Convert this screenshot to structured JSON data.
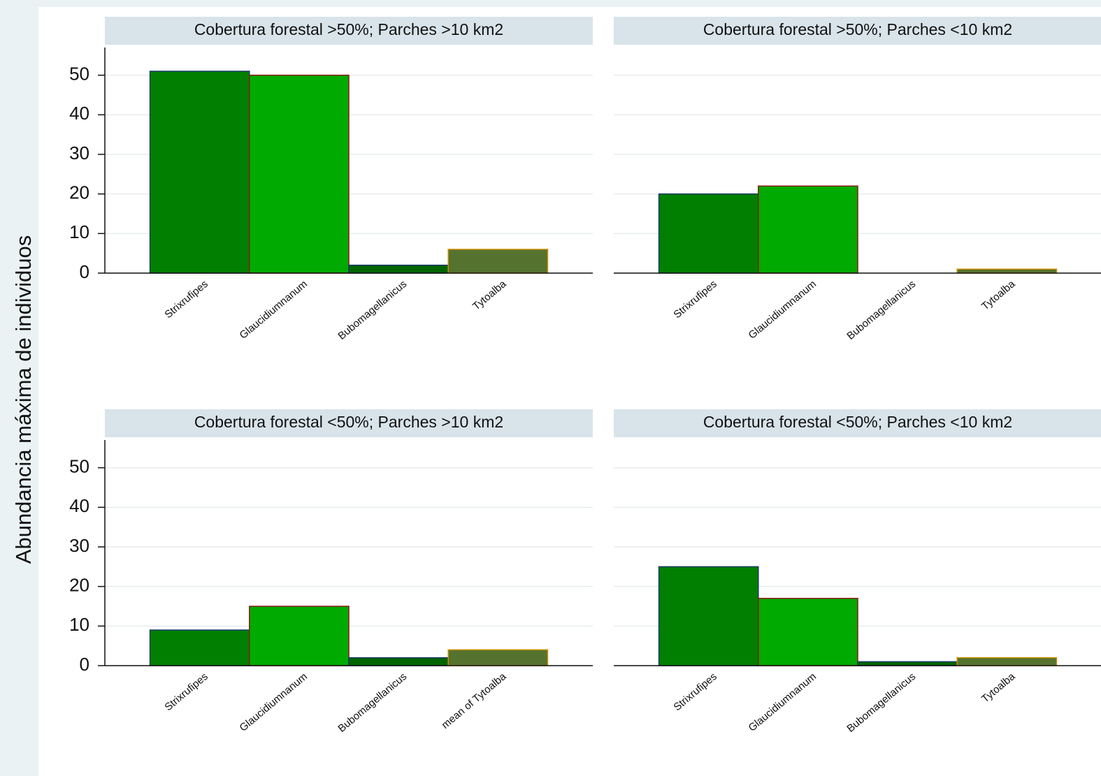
{
  "ylabel": "Abundancia máxima de individuos",
  "chart_data": [
    {
      "type": "bar",
      "title": "Cobertura forestal >50%; Parches >10 km2",
      "categories": [
        "Strixrufipes",
        "Glaucidiumnanum",
        "Bubomagellanicus",
        "Tytoalba"
      ],
      "values": [
        51,
        50,
        2,
        6
      ],
      "colors": [
        "#007f00",
        "#00aa00",
        "#006400",
        "#55732f"
      ],
      "edgecolors": [
        "#1a3a6a",
        "#8b1a1a",
        "#1a3a6a",
        "#d08a00"
      ],
      "ylim": [
        0,
        57
      ],
      "yticks": [
        0,
        10,
        20,
        30,
        40,
        50
      ],
      "ytick_labels": true,
      "grid": true
    },
    {
      "type": "bar",
      "title": "Cobertura forestal >50%; Parches <10 km2",
      "categories": [
        "Strixrufipes",
        "Glaucidiumnanum",
        "Bubomagellanicus",
        "Tytoalba"
      ],
      "values": [
        20,
        22,
        0,
        1
      ],
      "colors": [
        "#007f00",
        "#00aa00",
        "#006400",
        "#55732f"
      ],
      "edgecolors": [
        "#1a3a6a",
        "#8b1a1a",
        "#1a3a6a",
        "#d08a00"
      ],
      "ylim": [
        0,
        57
      ],
      "yticks": [
        0,
        10,
        20,
        30,
        40,
        50
      ],
      "ytick_labels": false,
      "grid": true
    },
    {
      "type": "bar",
      "title": "Cobertura forestal <50%; Parches >10 km2",
      "categories": [
        "Strixrufipes",
        "Glaucidiumnanum",
        "Bubomagellanicus",
        "mean of Tytoalba"
      ],
      "values": [
        9,
        15,
        2,
        4
      ],
      "colors": [
        "#007f00",
        "#00aa00",
        "#006400",
        "#55732f"
      ],
      "edgecolors": [
        "#1a3a6a",
        "#8b1a1a",
        "#1a3a6a",
        "#d08a00"
      ],
      "ylim": [
        0,
        57
      ],
      "yticks": [
        0,
        10,
        20,
        30,
        40,
        50
      ],
      "ytick_labels": true,
      "grid": true
    },
    {
      "type": "bar",
      "title": "Cobertura forestal <50%; Parches <10 km2",
      "categories": [
        "Strixrufipes",
        "Glaucidiumnanum",
        "Bubomagellanicus",
        "Tytoalba"
      ],
      "values": [
        25,
        17,
        1,
        2
      ],
      "colors": [
        "#007f00",
        "#00aa00",
        "#006400",
        "#55732f"
      ],
      "edgecolors": [
        "#1a3a6a",
        "#8b1a1a",
        "#1a3a6a",
        "#d08a00"
      ],
      "ylim": [
        0,
        57
      ],
      "yticks": [
        0,
        10,
        20,
        30,
        40,
        50
      ],
      "ytick_labels": false,
      "grid": true
    }
  ]
}
